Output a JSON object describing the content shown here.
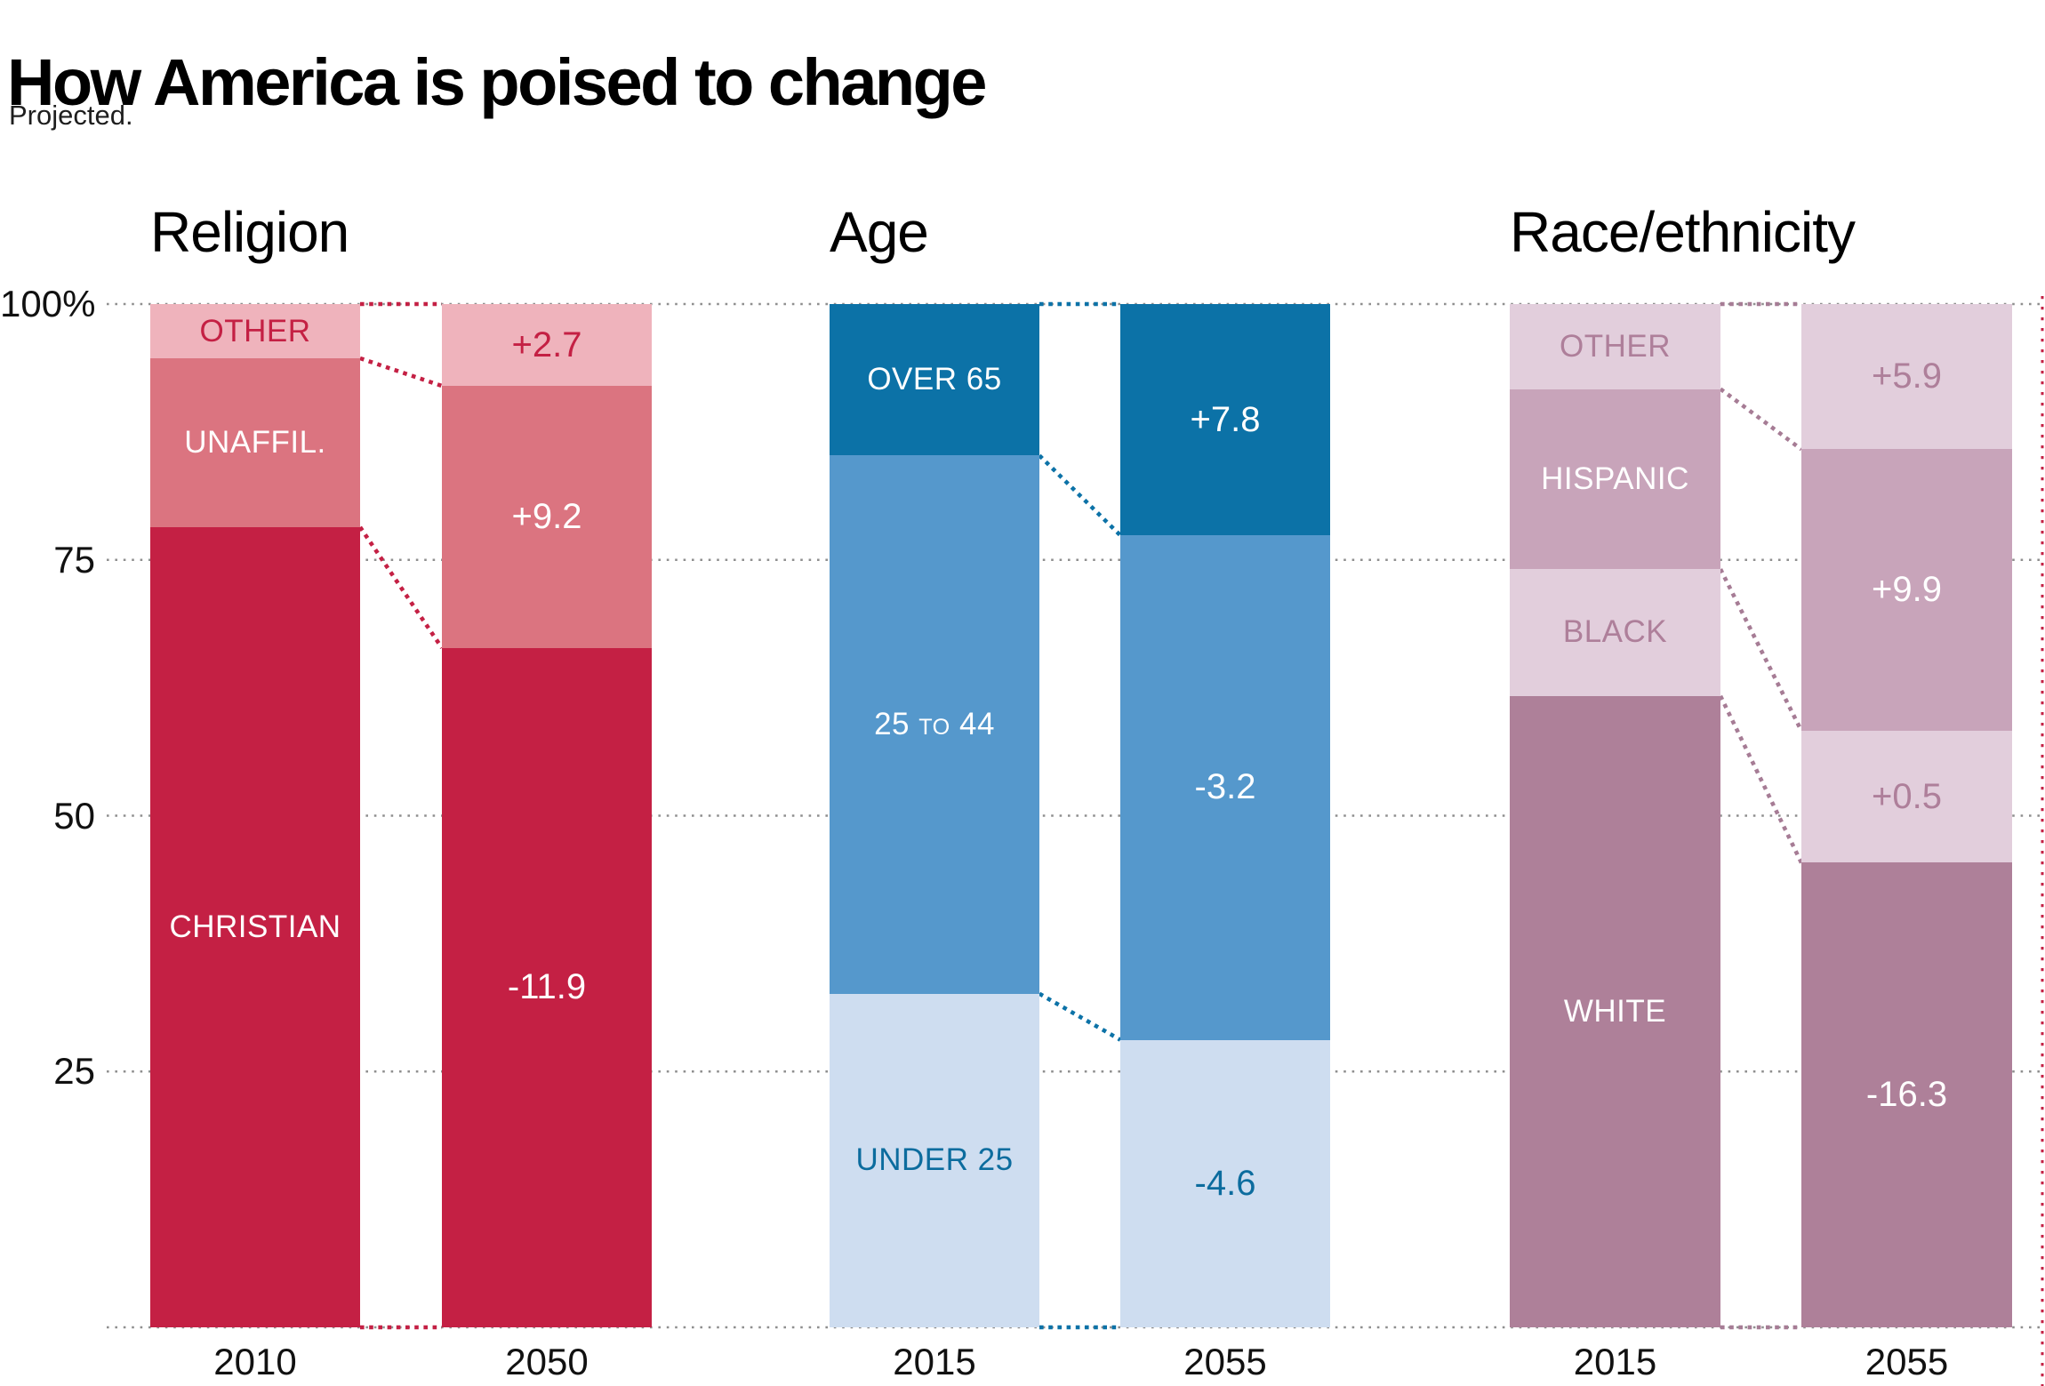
{
  "header": {
    "title": "How America is poised to change",
    "subtitle": "Projected."
  },
  "colors": {
    "background": "#FFFFFF",
    "grid": "#8F8F8F",
    "axis_text": "#111111",
    "title": "#000000",
    "subtitle": "#1E1E1E",
    "white_text": "#FFFFFF",
    "right_edge_rule": "#C42044",
    "palettes": {
      "red": {
        "dark": "#C42044",
        "mid": "#DB7480",
        "light": "#EFB3BC",
        "accent_text": "#C42044",
        "connector": "#C42044"
      },
      "blue": {
        "dark": "#0C72A7",
        "mid": "#5598CC",
        "light": "#CEDDF0",
        "accent_text": "#0C6C9E",
        "connector": "#0C72A7"
      },
      "mauve": {
        "dark": "#AE8099",
        "mid": "#C8A4BA",
        "light": "#E2CEDC",
        "accent_text": "#AE7F9A",
        "connector": "#A67C95"
      }
    }
  },
  "axis": {
    "yticks": [
      {
        "label": "100%",
        "value": 100
      },
      {
        "label": "75",
        "value": 75
      },
      {
        "label": "50",
        "value": 50
      },
      {
        "label": "25",
        "value": 25
      }
    ],
    "ylim": [
      0,
      100
    ]
  },
  "chart_data": {
    "type": "bar",
    "stacked": true,
    "title": "How America is poised to change",
    "subtitle": "Projected.",
    "ylim": [
      0,
      100
    ],
    "grid": "horizontal dotted lines at 0, 25, 50, 75, 100",
    "note": "Second bar of each pair is labeled with projected change in percentage points versus first bar",
    "groups": [
      {
        "title": "Religion",
        "palette": "red",
        "bars": [
          {
            "year": "2010",
            "segments": [
              {
                "name": "other",
                "label": "OTHER",
                "value": 5.3,
                "fill": "light",
                "text": "accent"
              },
              {
                "name": "unaffiliated",
                "label": "UNAFFIL.",
                "value": 16.5,
                "fill": "mid",
                "text": "white"
              },
              {
                "name": "christian",
                "label": "CHRISTIAN",
                "value": 78.2,
                "fill": "dark",
                "text": "white"
              }
            ]
          },
          {
            "year": "2050",
            "segments": [
              {
                "name": "other",
                "label": "+2.7",
                "value": 8.0,
                "fill": "light",
                "text": "accent",
                "change": 2.7
              },
              {
                "name": "unaffiliated",
                "label": "+9.2",
                "value": 25.6,
                "fill": "mid",
                "text": "white",
                "change": 9.2
              },
              {
                "name": "christian",
                "label": "-11.9",
                "value": 66.4,
                "fill": "dark",
                "text": "white",
                "change": -11.9
              }
            ]
          }
        ]
      },
      {
        "title": "Age",
        "palette": "blue",
        "bars": [
          {
            "year": "2015",
            "segments": [
              {
                "name": "over-65",
                "label": "OVER 65",
                "value": 14.8,
                "fill": "dark",
                "text": "white"
              },
              {
                "name": "25-to-44",
                "label": "25 TO 44",
                "small_word": "TO",
                "value": 52.6,
                "fill": "mid",
                "text": "white"
              },
              {
                "name": "under-25",
                "label": "UNDER 25",
                "value": 32.6,
                "fill": "light",
                "text": "accent"
              }
            ]
          },
          {
            "year": "2055",
            "segments": [
              {
                "name": "over-65",
                "label": "+7.8",
                "value": 22.6,
                "fill": "dark",
                "text": "white",
                "change": 7.8
              },
              {
                "name": "25-to-44",
                "label": "-3.2",
                "value": 49.3,
                "fill": "mid",
                "text": "white",
                "change": -3.2
              },
              {
                "name": "under-25",
                "label": "-4.6",
                "value": 28.1,
                "fill": "light",
                "text": "accent",
                "change": -4.6
              }
            ]
          }
        ]
      },
      {
        "title": "Race/ethnicity",
        "palette": "mauve",
        "bars": [
          {
            "year": "2015",
            "segments": [
              {
                "name": "other",
                "label": "OTHER",
                "value": 8.3,
                "fill": "light",
                "text": "accent"
              },
              {
                "name": "hispanic",
                "label": "HISPANIC",
                "value": 17.6,
                "fill": "mid",
                "text": "white"
              },
              {
                "name": "black",
                "label": "BLACK",
                "value": 12.4,
                "fill": "light",
                "text": "accent"
              },
              {
                "name": "white",
                "label": "WHITE",
                "value": 61.7,
                "fill": "dark",
                "text": "white"
              }
            ]
          },
          {
            "year": "2055",
            "segments": [
              {
                "name": "other",
                "label": "+5.9",
                "value": 14.2,
                "fill": "light",
                "text": "accent",
                "change": 5.9
              },
              {
                "name": "hispanic",
                "label": "+9.9",
                "value": 27.5,
                "fill": "mid",
                "text": "white",
                "change": 9.9
              },
              {
                "name": "black",
                "label": "+0.5",
                "value": 12.9,
                "fill": "light",
                "text": "accent",
                "change": 0.5
              },
              {
                "name": "white",
                "label": "-16.3",
                "value": 45.4,
                "fill": "dark",
                "text": "white",
                "change": -16.3
              }
            ]
          }
        ]
      }
    ]
  }
}
